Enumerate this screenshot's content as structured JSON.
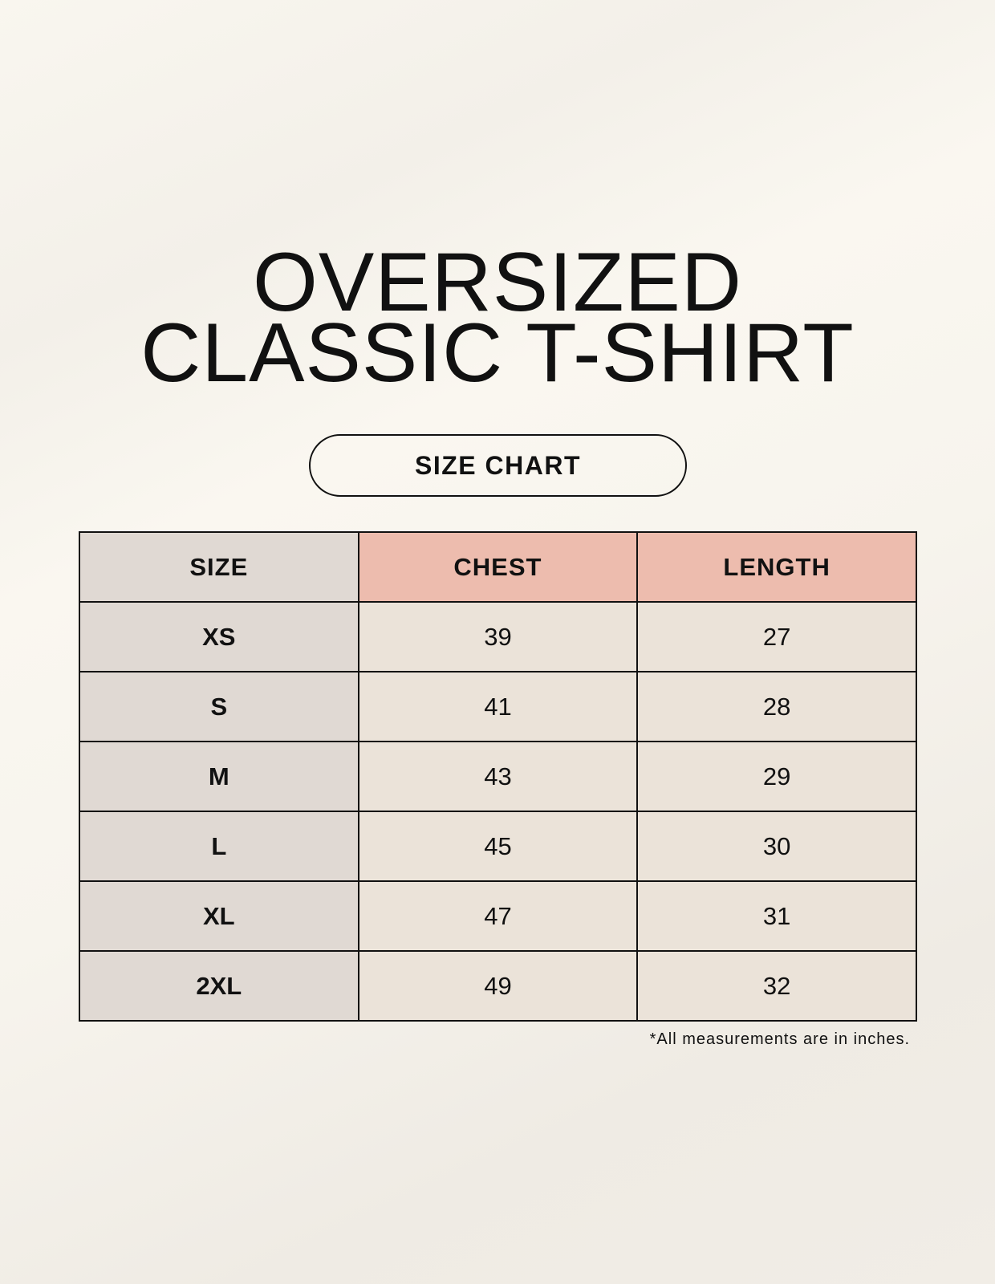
{
  "title": {
    "line1": "OVERSIZED",
    "line2": "CLASSIC T-SHIRT"
  },
  "badge": "SIZE CHART",
  "table": {
    "headers": [
      "SIZE",
      "CHEST",
      "LENGTH"
    ],
    "rows": [
      [
        "XS",
        "39",
        "27"
      ],
      [
        "S",
        "41",
        "28"
      ],
      [
        "M",
        "43",
        "29"
      ],
      [
        "L",
        "45",
        "30"
      ],
      [
        "XL",
        "47",
        "31"
      ],
      [
        "2XL",
        "49",
        "32"
      ]
    ]
  },
  "footnote": "*All measurements are in inches.",
  "colors": {
    "size_column": "#e0d9d3",
    "header_accent": "#edbcae",
    "cell": "#ebe3d9"
  }
}
